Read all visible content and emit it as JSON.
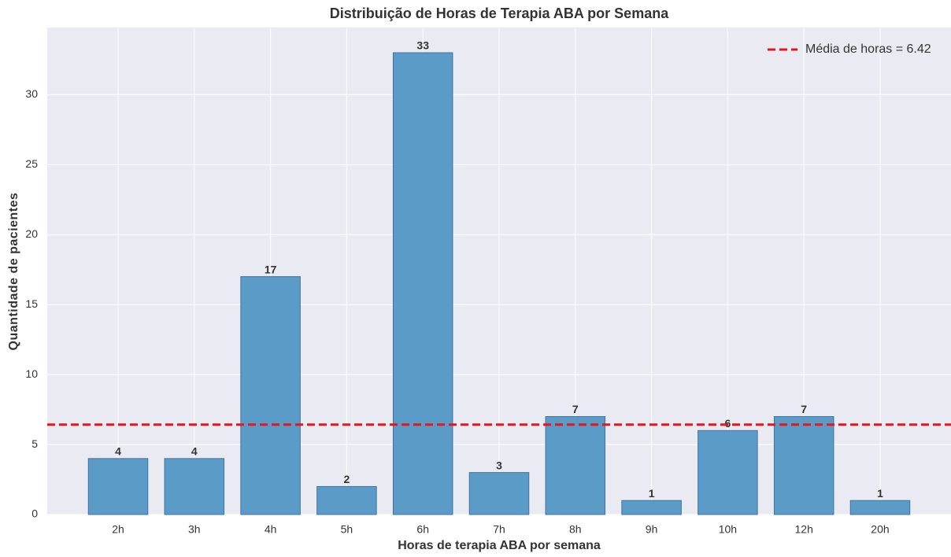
{
  "chart_data": {
    "type": "bar",
    "title": "Distribuição de Horas de Terapia ABA por Semana",
    "xlabel": "Horas de terapia ABA por semana",
    "ylabel": "Quantidade de pacientes",
    "categories": [
      "2h",
      "3h",
      "4h",
      "5h",
      "6h",
      "7h",
      "8h",
      "9h",
      "10h",
      "12h",
      "20h"
    ],
    "values": [
      4,
      4,
      17,
      2,
      33,
      3,
      7,
      1,
      6,
      7,
      1
    ],
    "color": "#5b9bc8",
    "ylim": [
      0,
      34.8
    ],
    "yticks": [
      0,
      5,
      10,
      15,
      20,
      25,
      30
    ],
    "grid": true,
    "reference_line": {
      "value": 6.42,
      "label": "Média de horas = 6.42",
      "color": "#e8141c"
    },
    "legend": "upper right"
  }
}
